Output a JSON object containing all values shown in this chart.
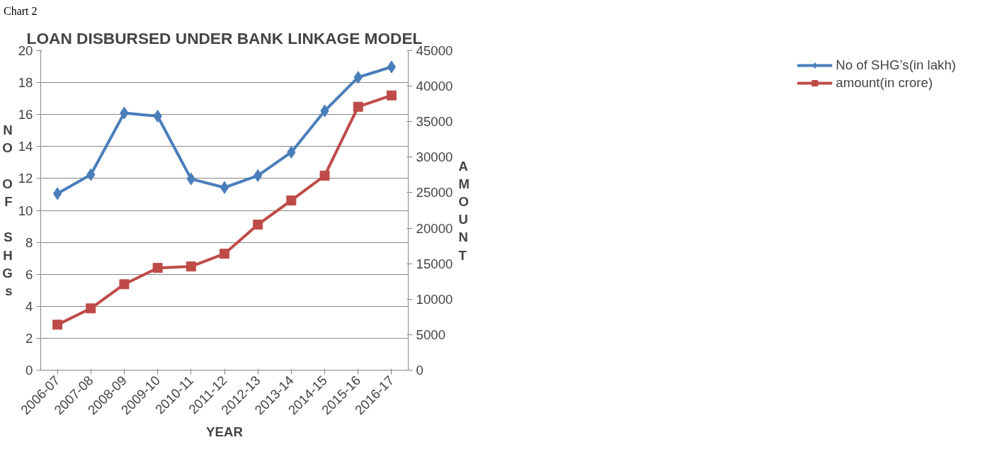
{
  "chart_data": {
    "type": "line",
    "title": "LOAN DISBURSED UNDER BANK LINKAGE MODEL",
    "xlabel": "YEAR",
    "ylabel": "NO OF SHGs",
    "y2label": "AMOUNT",
    "annotations": [
      "Chart 2"
    ],
    "categories": [
      "2006-07",
      "2007-08",
      "2008-09",
      "2009-10",
      "2010-11",
      "2011-12",
      "2012-13",
      "2013-14",
      "2014-15",
      "2015-16",
      "2016-17"
    ],
    "series": [
      {
        "name": "No of SHG’s(in lakh)",
        "color": "#4a7ebb",
        "marker": "diamond",
        "values": [
          11.05,
          12.24,
          16.1,
          15.9,
          11.97,
          11.43,
          12.18,
          13.64,
          16.23,
          18.33,
          18.98
        ]
      },
      {
        "name": "amount(in crore)",
        "color": "#be4b48",
        "marker": "square",
        "axis": "y2",
        "values": [
          6400,
          8700,
          12100,
          14400,
          14600,
          16400,
          20500,
          23900,
          27400,
          37100,
          38700
        ]
      }
    ],
    "ylim": [
      0,
      20
    ],
    "yticks": [
      0,
      2,
      4,
      6,
      8,
      10,
      12,
      14,
      16,
      18,
      20
    ],
    "y2lim": [
      0,
      45000
    ],
    "y2ticks": [
      0,
      5000,
      10000,
      15000,
      20000,
      25000,
      30000,
      35000,
      40000,
      45000
    ],
    "grid": "y",
    "legend": "right"
  }
}
